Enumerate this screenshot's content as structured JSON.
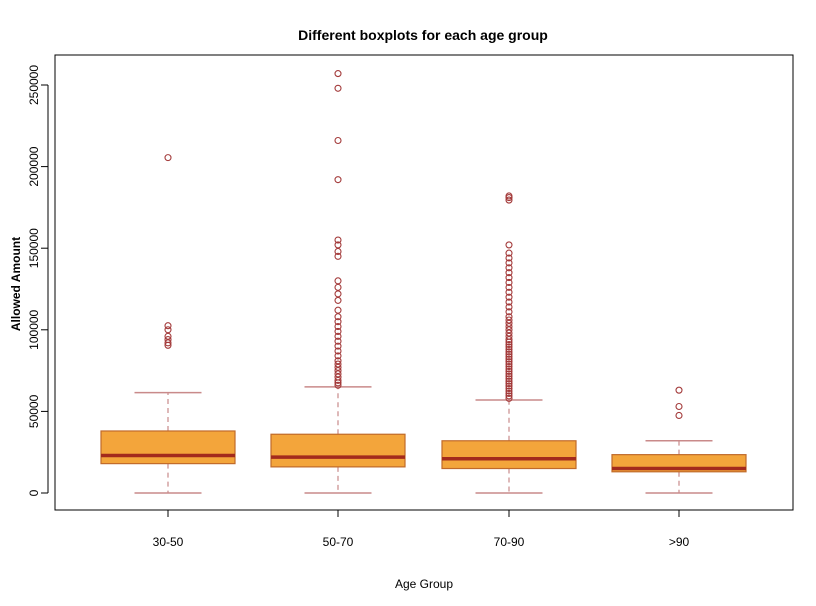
{
  "colors": {
    "box_fill": "#F3A53B",
    "box_border": "#C06A2A",
    "median": "#A32A1C",
    "whisker": "#C98A8A",
    "outlier": "#A33A3A",
    "axis": "#000000"
  },
  "chart_data": {
    "type": "boxplot",
    "title": "Different boxplots for each age group",
    "xlabel": "Age Group",
    "ylabel": "Allowed Amount",
    "ylim": [
      -10000,
      262000
    ],
    "yticks": [
      0,
      50000,
      100000,
      150000,
      200000,
      250000
    ],
    "ytick_labels": [
      "0",
      "50000",
      "100000",
      "150000",
      "200000",
      "250000"
    ],
    "categories": [
      "30-50",
      "50-70",
      "70-90",
      ">90"
    ],
    "boxes": [
      {
        "category": "30-50",
        "whisker_low": 0,
        "q1": 18000,
        "median": 23000,
        "q3": 38000,
        "whisker_high": 61500,
        "outliers": [
          90500,
          92000,
          94000,
          96000,
          100000,
          102500,
          205500
        ]
      },
      {
        "category": "50-70",
        "whisker_low": 0,
        "q1": 16000,
        "median": 22000,
        "q3": 36000,
        "whisker_high": 65000,
        "outliers": [
          66000,
          67500,
          69000,
          71000,
          73000,
          75000,
          77000,
          79000,
          81000,
          84000,
          87000,
          90000,
          93000,
          96000,
          99000,
          102000,
          105000,
          108000,
          112000,
          118000,
          122000,
          126000,
          130000,
          145000,
          148000,
          152000,
          155000,
          192000,
          216000,
          248000,
          257000
        ]
      },
      {
        "category": "70-90",
        "whisker_low": 0,
        "q1": 15000,
        "median": 21000,
        "q3": 32000,
        "whisker_high": 57000,
        "outliers": [
          58000,
          59500,
          61000,
          62500,
          64000,
          65500,
          67000,
          68500,
          70000,
          71500,
          73000,
          74500,
          76000,
          77500,
          79000,
          80500,
          82000,
          83500,
          85000,
          86500,
          88000,
          89500,
          91000,
          92500,
          94000,
          96000,
          98000,
          100000,
          102000,
          104000,
          106000,
          108000,
          111000,
          114000,
          117000,
          120000,
          123000,
          126000,
          129000,
          132000,
          135000,
          138000,
          141000,
          144000,
          147000,
          152000,
          179500,
          181000,
          182000
        ]
      },
      {
        "category": ">90",
        "whisker_low": 0,
        "q1": 13000,
        "median": 15000,
        "q3": 23500,
        "whisker_high": 32000,
        "outliers": [
          47500,
          53000,
          63000
        ]
      }
    ]
  }
}
